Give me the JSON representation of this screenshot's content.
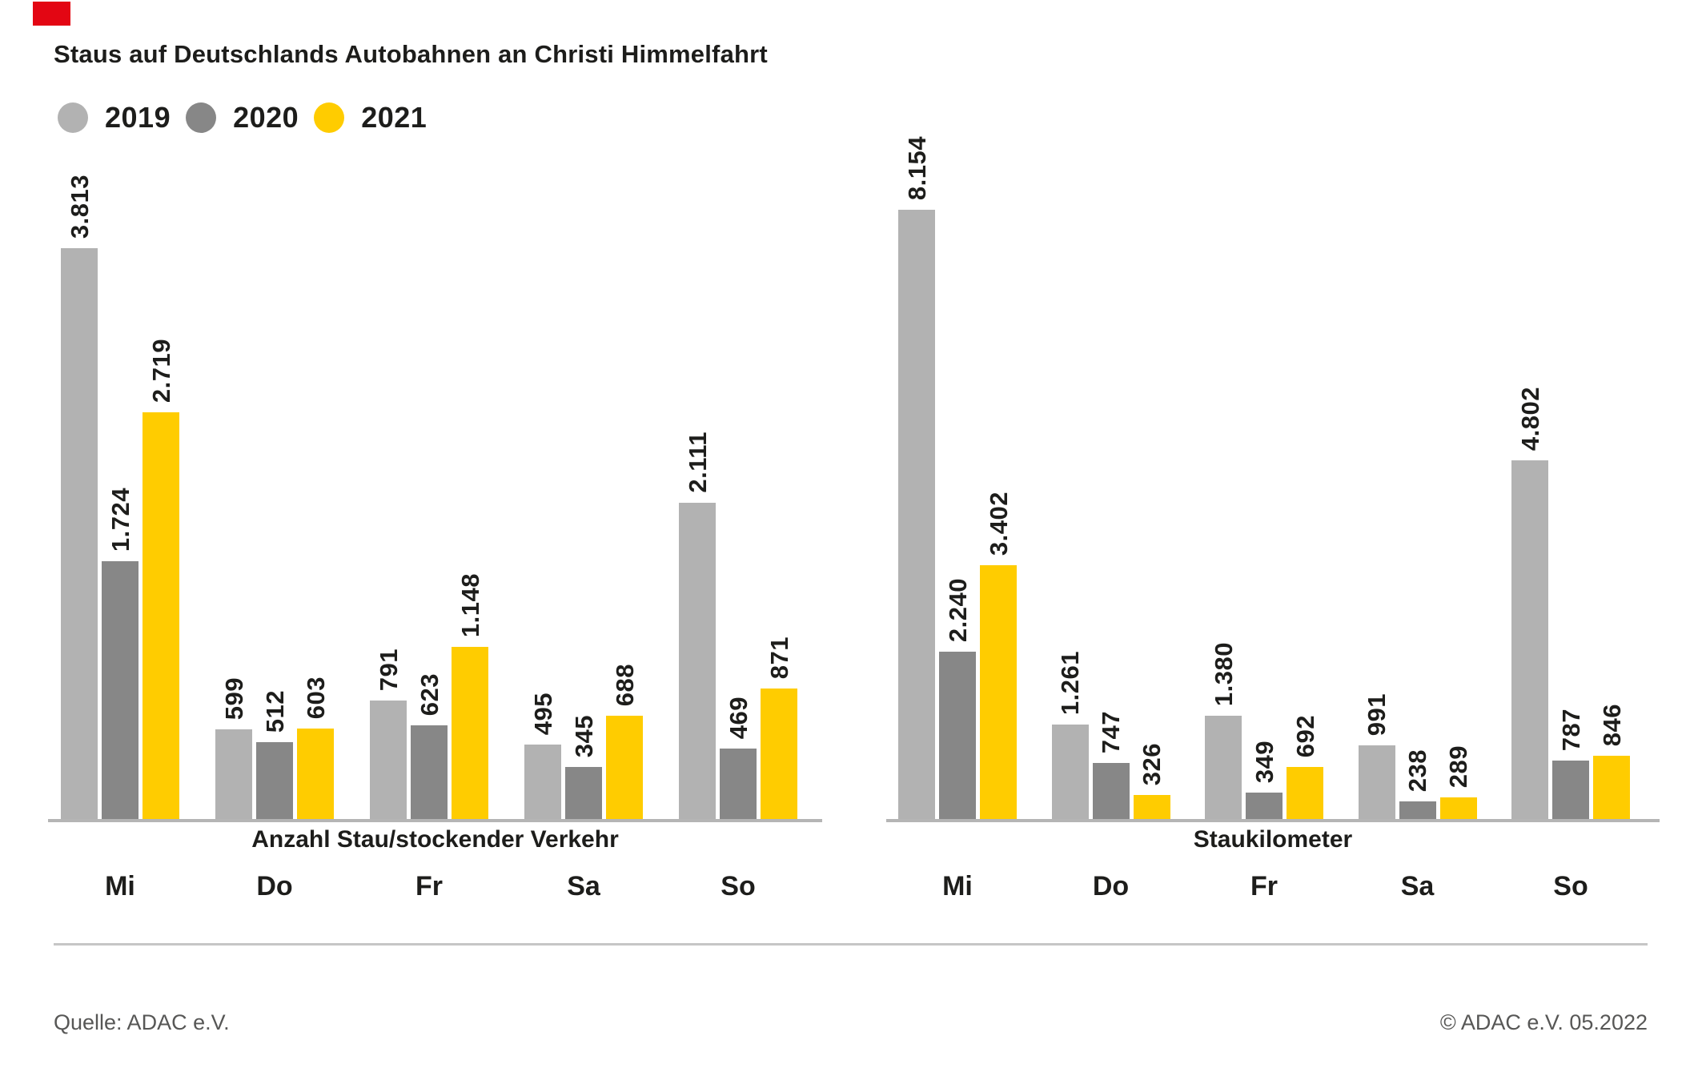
{
  "title": "Staus auf Deutschlands Autobahnen an Christi Himmelfahrt",
  "marker_color": "#e30613",
  "legend": [
    {
      "label": "2019",
      "color": "#b2b2b2"
    },
    {
      "label": "2020",
      "color": "#878787"
    },
    {
      "label": "2021",
      "color": "#ffcc00"
    }
  ],
  "footer": {
    "source": "Quelle: ADAC e.V.",
    "copyright": "© ADAC e.V. 05.2022"
  },
  "chart_data": [
    {
      "type": "bar",
      "title": "Anzahl Stau/stockender Verkehr",
      "categories": [
        "Mi",
        "Do",
        "Fr",
        "Sa",
        "So"
      ],
      "series": [
        {
          "name": "2019",
          "values": [
            3813,
            599,
            791,
            495,
            2111
          ],
          "labels": [
            "3.813",
            "599",
            "791",
            "495",
            "2.111"
          ]
        },
        {
          "name": "2020",
          "values": [
            1724,
            512,
            623,
            345,
            469
          ],
          "labels": [
            "1.724",
            "512",
            "623",
            "345",
            "469"
          ]
        },
        {
          "name": "2021",
          "values": [
            2719,
            603,
            1148,
            688,
            871
          ],
          "labels": [
            "2.719",
            "603",
            "1.148",
            "688",
            "871"
          ]
        }
      ],
      "ylim": [
        0,
        3900
      ],
      "grid": false,
      "legend_position": "top-left",
      "value_labels": "rotated-90-above-bars"
    },
    {
      "type": "bar",
      "title": "Staukilometer",
      "categories": [
        "Mi",
        "Do",
        "Fr",
        "Sa",
        "So"
      ],
      "series": [
        {
          "name": "2019",
          "values": [
            8154,
            1261,
            1380,
            991,
            4802
          ],
          "labels": [
            "8.154",
            "1.261",
            "1.380",
            "991",
            "4.802"
          ]
        },
        {
          "name": "2020",
          "values": [
            2240,
            747,
            349,
            238,
            787
          ],
          "labels": [
            "2.240",
            "747",
            "349",
            "238",
            "787"
          ]
        },
        {
          "name": "2021",
          "values": [
            3402,
            326,
            692,
            289,
            846
          ],
          "labels": [
            "3.402",
            "326",
            "692",
            "289",
            "846"
          ]
        }
      ],
      "ylim": [
        0,
        8300
      ],
      "grid": false,
      "legend_position": "top-left",
      "value_labels": "rotated-90-above-bars"
    }
  ]
}
